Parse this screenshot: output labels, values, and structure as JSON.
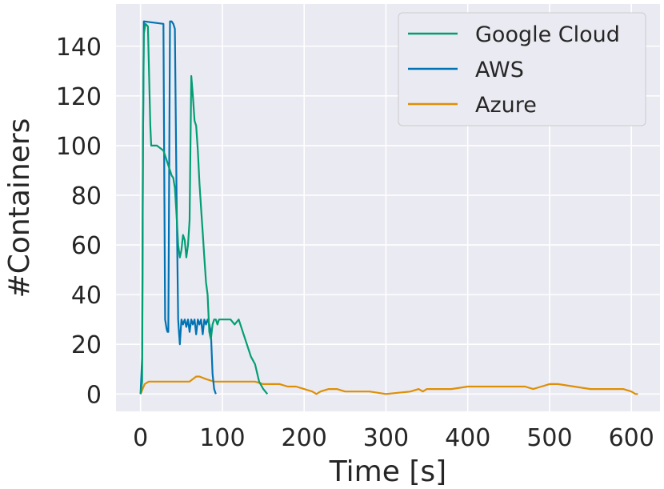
{
  "chart_data": {
    "type": "line",
    "xlabel": "Time [s]",
    "ylabel": "#Containers",
    "xlim": [
      -30,
      635
    ],
    "ylim": [
      -7,
      157
    ],
    "xticks": [
      0,
      100,
      200,
      300,
      400,
      500,
      600
    ],
    "xtick_labels": [
      "0",
      "100",
      "200",
      "300",
      "400",
      "500",
      "600"
    ],
    "yticks": [
      0,
      20,
      40,
      60,
      80,
      100,
      120,
      140
    ],
    "ytick_labels": [
      "0",
      "20",
      "40",
      "60",
      "80",
      "100",
      "120",
      "140"
    ],
    "grid": true,
    "legend_position": "top-right",
    "series": [
      {
        "name": "Google Cloud",
        "color": "#029e73",
        "x": [
          0,
          2,
          3,
          4,
          6,
          9,
          12,
          13,
          14,
          15,
          20,
          28,
          32,
          34,
          36,
          38,
          40,
          42,
          44,
          46,
          48,
          50,
          52,
          54,
          56,
          58,
          60,
          62,
          64,
          66,
          68,
          70,
          72,
          74,
          76,
          78,
          80,
          82,
          84,
          86,
          88,
          90,
          92,
          94,
          96,
          98,
          100,
          105,
          110,
          115,
          120,
          125,
          130,
          135,
          140,
          145,
          150,
          155
        ],
        "y": [
          0,
          5,
          100,
          145,
          149,
          148,
          108,
          100,
          100,
          100,
          100,
          98,
          94,
          92,
          90,
          88,
          87,
          83,
          72,
          60,
          55,
          58,
          64,
          62,
          55,
          60,
          70,
          128,
          120,
          110,
          108,
          98,
          85,
          75,
          65,
          55,
          45,
          40,
          25,
          22,
          28,
          30,
          30,
          28,
          30,
          30,
          30,
          30,
          30,
          28,
          30,
          25,
          20,
          15,
          12,
          5,
          2,
          0
        ]
      },
      {
        "name": "AWS",
        "color": "#0173b2",
        "x": [
          0,
          2,
          3,
          4,
          28,
          29,
          30,
          31,
          32,
          33,
          34,
          36,
          38,
          40,
          42,
          44,
          46,
          47,
          48,
          50,
          52,
          54,
          56,
          58,
          60,
          62,
          64,
          66,
          68,
          70,
          72,
          74,
          76,
          78,
          80,
          82,
          84,
          86,
          88,
          90,
          92
        ],
        "y": [
          0,
          15,
          100,
          150,
          149,
          90,
          30,
          28,
          26,
          25,
          25,
          150,
          150,
          149,
          147,
          80,
          30,
          25,
          20,
          30,
          28,
          30,
          27,
          30,
          25,
          30,
          28,
          30,
          24,
          30,
          28,
          30,
          24,
          30,
          28,
          30,
          28,
          25,
          8,
          2,
          0
        ]
      },
      {
        "name": "Azure",
        "color": "#de8f05",
        "x": [
          0,
          5,
          10,
          20,
          40,
          60,
          68,
          72,
          80,
          90,
          100,
          120,
          140,
          150,
          160,
          170,
          180,
          190,
          200,
          210,
          215,
          220,
          230,
          240,
          250,
          260,
          280,
          300,
          330,
          340,
          345,
          350,
          360,
          370,
          380,
          400,
          420,
          440,
          460,
          470,
          480,
          490,
          500,
          510,
          530,
          550,
          560,
          580,
          590,
          600,
          605,
          608
        ],
        "y": [
          0,
          4,
          5,
          5,
          5,
          5,
          7,
          7,
          6,
          5,
          5,
          5,
          5,
          4,
          4,
          4,
          3,
          3,
          2,
          1,
          0,
          1,
          2,
          2,
          1,
          1,
          1,
          0,
          1,
          2,
          1,
          2,
          2,
          2,
          2,
          3,
          3,
          3,
          3,
          3,
          2,
          3,
          4,
          4,
          3,
          2,
          2,
          2,
          2,
          1,
          0,
          0
        ]
      }
    ]
  }
}
